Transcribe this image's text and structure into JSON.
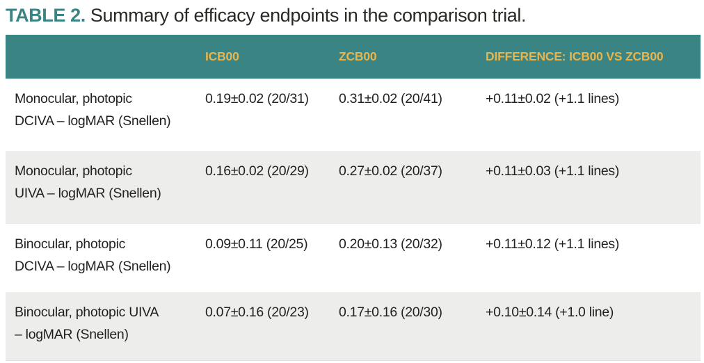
{
  "title": {
    "prefix": "TABLE 2.",
    "text": " Summary of efficacy endpoints in the comparison trial."
  },
  "table": {
    "columns": [
      "",
      "ICB00",
      "ZCB00",
      "DIFFERENCE: ICB00 VS ZCB00"
    ],
    "rows": [
      {
        "label": "Monocular, photopic\nDCIVA – logMAR (Snellen)",
        "icb00": "0.19±0.02 (20/31)",
        "zcb00": "0.31±0.02 (20/41)",
        "difference": "+0.11±0.02 (+1.1 lines)"
      },
      {
        "label": "Monocular, photopic\nUIVA – logMAR (Snellen)",
        "icb00": "0.16±0.02 (20/29)",
        "zcb00": "0.27±0.02 (20/37)",
        "difference": "+0.11±0.03 (+1.1 lines)"
      },
      {
        "label": "Binocular, photopic\nDCIVA – logMAR (Snellen)",
        "icb00": "0.09±0.11 (20/25)",
        "zcb00": "0.20±0.13 (20/32)",
        "difference": "+0.11±0.12 (+1.1 lines)"
      },
      {
        "label": "Binocular, photopic UIVA\n– logMAR (Snellen)",
        "icb00": "0.07±0.16 (20/23)",
        "zcb00": "0.17±0.16 (20/30)",
        "difference": "+0.10±0.14 (+1.0 line)"
      }
    ]
  },
  "colors": {
    "header_teal": "#3A8583",
    "header_gold": "#EAB44C",
    "row_alt_gray": "#EDEDEB",
    "body_text": "#231F20"
  }
}
